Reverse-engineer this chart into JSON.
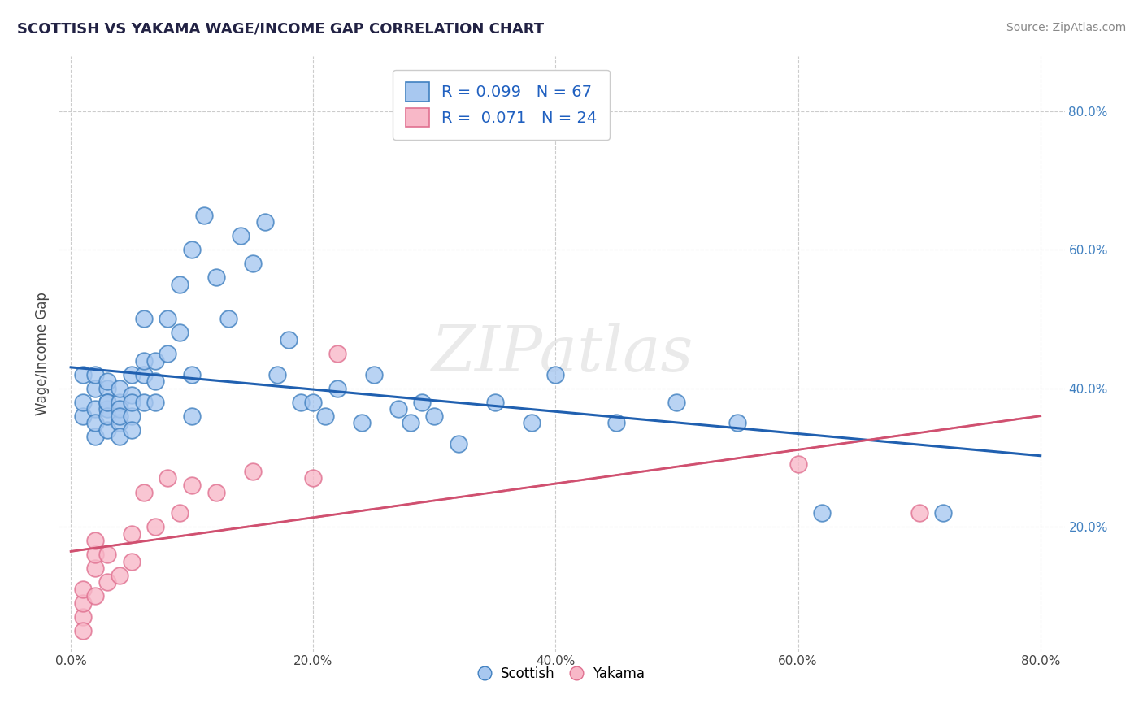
{
  "title": "SCOTTISH VS YAKAMA WAGE/INCOME GAP CORRELATION CHART",
  "source": "Source: ZipAtlas.com",
  "ylabel": "Wage/Income Gap",
  "xlim": [
    -0.01,
    0.82
  ],
  "ylim": [
    0.02,
    0.88
  ],
  "xticklabels": [
    "0.0%",
    "",
    "",
    "",
    "20.0%",
    "",
    "",
    "",
    "40.0%",
    "",
    "",
    "",
    "60.0%",
    "",
    "",
    "",
    "80.0%"
  ],
  "xticks": [
    0.0,
    0.05,
    0.1,
    0.15,
    0.2,
    0.25,
    0.3,
    0.35,
    0.4,
    0.45,
    0.5,
    0.55,
    0.6,
    0.65,
    0.7,
    0.75,
    0.8
  ],
  "xticks_labeled": [
    0.0,
    0.2,
    0.4,
    0.6,
    0.8
  ],
  "xticklabels_labeled": [
    "0.0%",
    "20.0%",
    "40.0%",
    "60.0%",
    "80.0%"
  ],
  "yticklabels_right": [
    "20.0%",
    "40.0%",
    "60.0%",
    "80.0%"
  ],
  "yticks_right": [
    0.2,
    0.4,
    0.6,
    0.8
  ],
  "R_scottish": 0.099,
  "N_scottish": 67,
  "R_yakama": 0.071,
  "N_yakama": 24,
  "blue_fill": "#A8C8F0",
  "pink_fill": "#F8B8C8",
  "blue_edge": "#4080C0",
  "pink_edge": "#E07090",
  "blue_line": "#2060B0",
  "pink_line": "#D05070",
  "grid_color": "#CCCCCC",
  "watermark": "ZIPatlas",
  "background_color": "#FFFFFF",
  "scottish_x": [
    0.01,
    0.01,
    0.01,
    0.02,
    0.02,
    0.02,
    0.02,
    0.02,
    0.03,
    0.03,
    0.03,
    0.03,
    0.03,
    0.03,
    0.03,
    0.04,
    0.04,
    0.04,
    0.04,
    0.04,
    0.04,
    0.05,
    0.05,
    0.05,
    0.05,
    0.05,
    0.06,
    0.06,
    0.06,
    0.06,
    0.07,
    0.07,
    0.07,
    0.08,
    0.08,
    0.09,
    0.09,
    0.1,
    0.1,
    0.1,
    0.11,
    0.12,
    0.13,
    0.14,
    0.15,
    0.16,
    0.17,
    0.18,
    0.19,
    0.2,
    0.21,
    0.22,
    0.24,
    0.25,
    0.27,
    0.28,
    0.29,
    0.3,
    0.32,
    0.35,
    0.38,
    0.4,
    0.45,
    0.5,
    0.55,
    0.62,
    0.72
  ],
  "scottish_y": [
    0.36,
    0.38,
    0.42,
    0.33,
    0.37,
    0.4,
    0.42,
    0.35,
    0.34,
    0.37,
    0.4,
    0.38,
    0.41,
    0.36,
    0.38,
    0.35,
    0.38,
    0.4,
    0.37,
    0.33,
    0.36,
    0.36,
    0.39,
    0.42,
    0.38,
    0.34,
    0.38,
    0.42,
    0.5,
    0.44,
    0.38,
    0.41,
    0.44,
    0.45,
    0.5,
    0.48,
    0.55,
    0.36,
    0.42,
    0.6,
    0.65,
    0.56,
    0.5,
    0.62,
    0.58,
    0.64,
    0.42,
    0.47,
    0.38,
    0.38,
    0.36,
    0.4,
    0.35,
    0.42,
    0.37,
    0.35,
    0.38,
    0.36,
    0.32,
    0.38,
    0.35,
    0.42,
    0.35,
    0.38,
    0.35,
    0.22,
    0.22
  ],
  "yakama_x": [
    0.01,
    0.01,
    0.01,
    0.01,
    0.02,
    0.02,
    0.02,
    0.02,
    0.03,
    0.03,
    0.04,
    0.05,
    0.05,
    0.06,
    0.07,
    0.08,
    0.09,
    0.1,
    0.12,
    0.15,
    0.2,
    0.22,
    0.6,
    0.7
  ],
  "yakama_y": [
    0.07,
    0.09,
    0.11,
    0.05,
    0.14,
    0.16,
    0.1,
    0.18,
    0.12,
    0.16,
    0.13,
    0.15,
    0.19,
    0.25,
    0.2,
    0.27,
    0.22,
    0.26,
    0.25,
    0.28,
    0.27,
    0.45,
    0.29,
    0.22
  ]
}
